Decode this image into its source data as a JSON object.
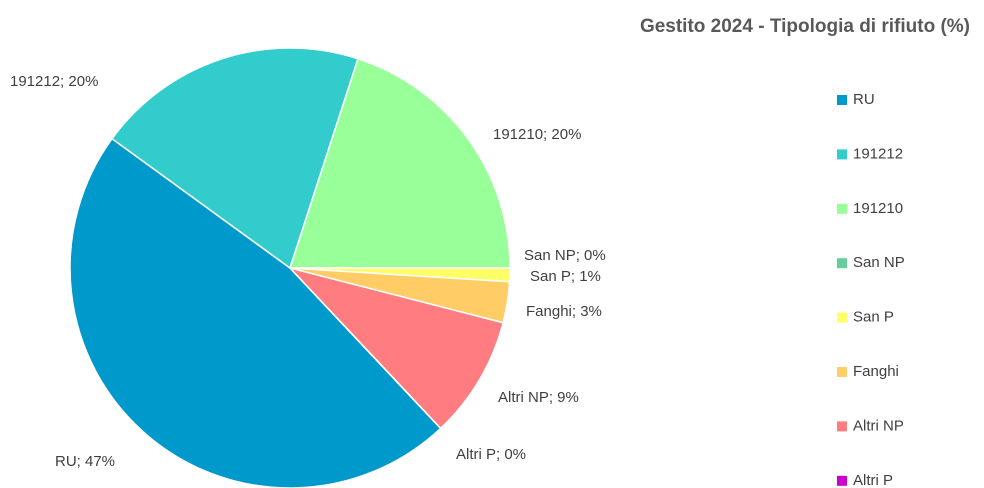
{
  "chart_data": {
    "type": "pie",
    "title": "Gestito 2024 - Tipologia di rifiuto (%)",
    "categories": [
      "RU",
      "191212",
      "191210",
      "San NP",
      "San P",
      "Fanghi",
      "Altri NP",
      "Altri P"
    ],
    "values": [
      47,
      20,
      20,
      0,
      1,
      3,
      9,
      0
    ],
    "value_labels": [
      "RU; 47%",
      "191212; 20%",
      "191210; 20%",
      "San NP; 0%",
      "San P; 1%",
      "Fanghi; 3%",
      "Altri NP; 9%",
      "Altri P; 0%"
    ],
    "colors": [
      "#0099cc",
      "#33cccc",
      "#99ff99",
      "#66cc99",
      "#ffff66",
      "#ffcc66",
      "#ff7c80",
      "#cc00cc"
    ],
    "legend": "right"
  }
}
